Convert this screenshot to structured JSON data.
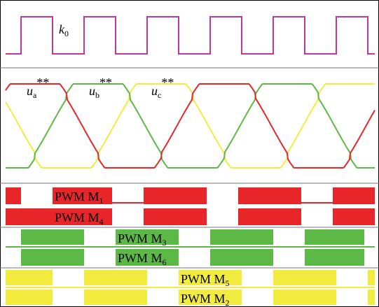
{
  "signals": {
    "k0": {
      "main": "k",
      "sub": "0"
    },
    "ua": {
      "main": "u",
      "sub": "a",
      "sup": "**"
    },
    "ub": {
      "main": "u",
      "sub": "b",
      "sup": "**"
    },
    "uc": {
      "main": "u",
      "sub": "c",
      "sup": "**"
    },
    "pwm": [
      {
        "main": "PWM M",
        "sub": "1"
      },
      {
        "main": "PWM M",
        "sub": "4"
      },
      {
        "main": "PWM M",
        "sub": "3"
      },
      {
        "main": "PWM M",
        "sub": "6"
      },
      {
        "main": "PWM M",
        "sub": "5"
      },
      {
        "main": "PWM M",
        "sub": "2"
      }
    ]
  }
}
